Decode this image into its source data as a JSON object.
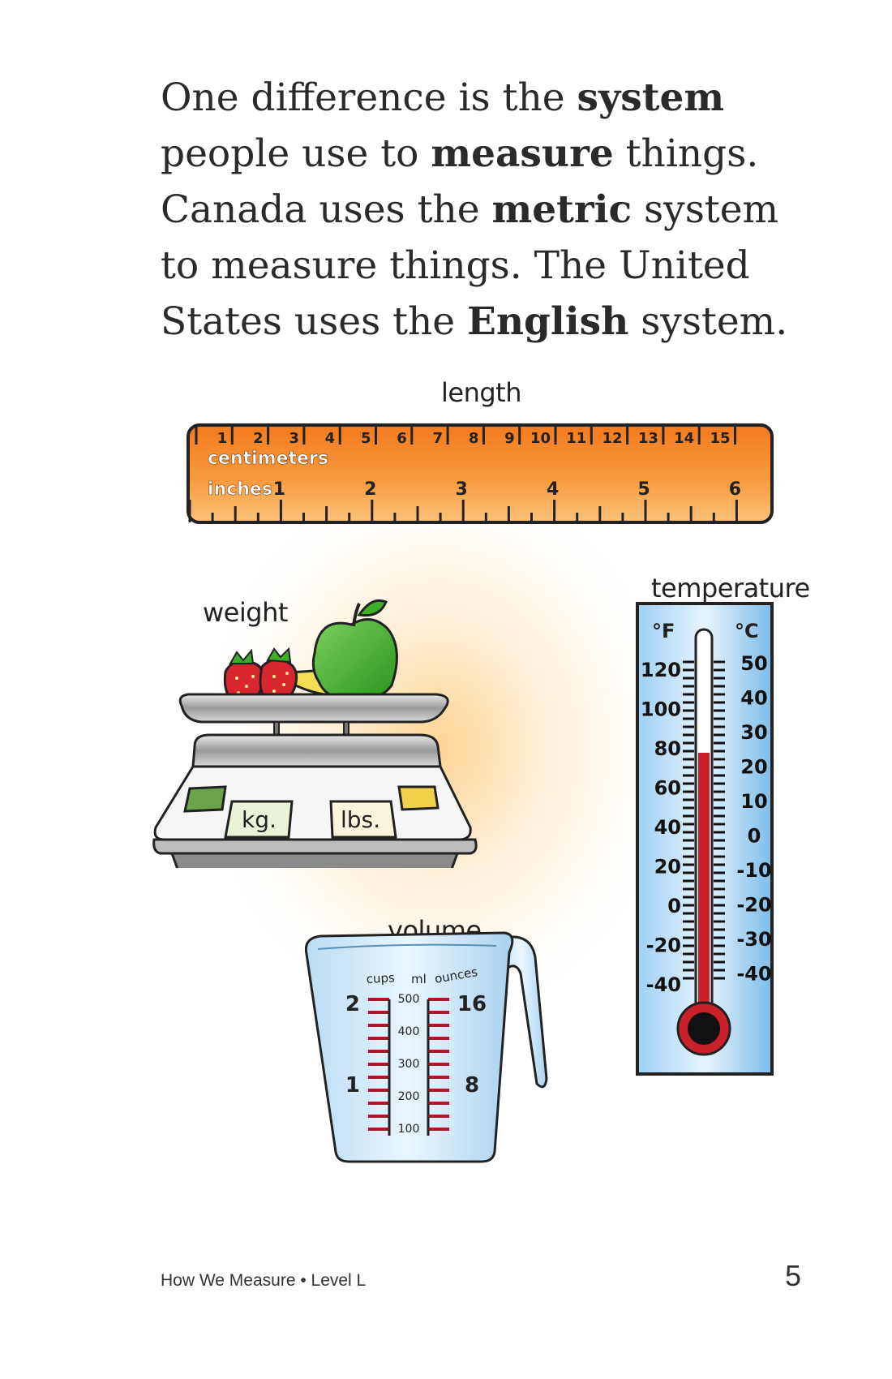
{
  "paragraph": {
    "t1": "One difference is the ",
    "b1": "system",
    "t2": " people use to ",
    "b2": "measure",
    "t3": " things. Canada uses the ",
    "b3": "metric",
    "t4": " system to measure things. The United States uses the ",
    "b4": "English",
    "t5": " system."
  },
  "labels": {
    "length": "length",
    "weight": "weight",
    "temperature": "temperature",
    "volume": "volume"
  },
  "ruler": {
    "unit_cm": "centimeters",
    "unit_in": "inches",
    "cm_marks": [
      "1",
      "2",
      "3",
      "4",
      "5",
      "6",
      "7",
      "8",
      "9",
      "10",
      "11",
      "12",
      "13",
      "14",
      "15"
    ],
    "inch_marks": [
      "1",
      "2",
      "3",
      "4",
      "5",
      "6"
    ]
  },
  "scale": {
    "kg_label": "kg.",
    "lbs_label": "lbs."
  },
  "thermometer": {
    "f_unit": "°F",
    "c_unit": "°C",
    "f_marks": [
      "120",
      "100",
      "80",
      "60",
      "40",
      "20",
      "0",
      "-20",
      "-40"
    ],
    "c_marks": [
      "50",
      "40",
      "30",
      "20",
      "10",
      "0",
      "-10",
      "-20",
      "-30",
      "-40"
    ]
  },
  "cup": {
    "cups_label": "cups",
    "ml_label": "ml",
    "ounces_label": "ounces",
    "cups_marks": [
      "2",
      "1"
    ],
    "ml_marks": [
      "500",
      "400",
      "300",
      "200",
      "100"
    ],
    "ounces_marks": [
      "16",
      "8"
    ]
  },
  "footer": {
    "book_title": "How We Measure • Level L",
    "page_number": "5"
  },
  "colors": {
    "ruler_orange": "#f58a2a",
    "apple_green": "#3cae2a",
    "strawberry_red": "#d8262e",
    "banana_yellow": "#f4de52",
    "thermometer_blue": "#8fc6f0",
    "mercury_red": "#c9202a",
    "cup_water": "#d4ecfa"
  }
}
